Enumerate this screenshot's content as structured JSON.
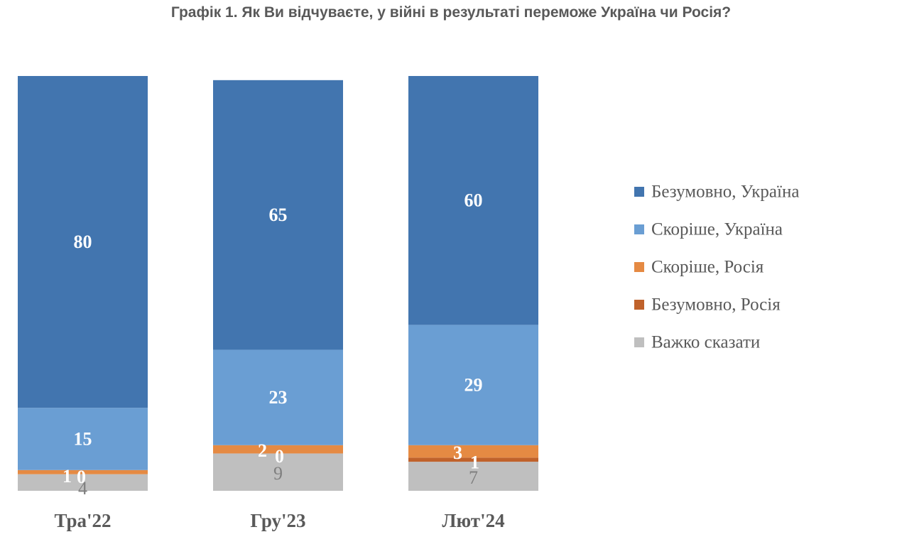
{
  "chart_data": {
    "type": "bar",
    "stacked": true,
    "title": "Графік 1. Як Ви відчуваєте, у війні в результаті переможе Україна чи Росія?",
    "categories": [
      "Тра'22",
      "Гру'23",
      "Лют'24"
    ],
    "series": [
      {
        "name": "Важко сказати",
        "values": [
          4,
          9,
          7
        ],
        "color": "#bfbfbf",
        "label_style": "grey"
      },
      {
        "name": "Безумовно, Росія",
        "values": [
          0,
          0,
          1
        ],
        "color": "#c0622b",
        "label_style": "white"
      },
      {
        "name": "Скоріше, Росія",
        "values": [
          1,
          2,
          3
        ],
        "color": "#e58a43",
        "label_style": "white"
      },
      {
        "name": "Скоріше, Україна",
        "values": [
          15,
          23,
          29
        ],
        "color": "#6a9ed3",
        "label_style": "white"
      },
      {
        "name": "Безумовно, Україна",
        "values": [
          80,
          65,
          60
        ],
        "color": "#4275af",
        "label_style": "white"
      }
    ],
    "legend_order": [
      "Безумовно, Україна",
      "Скоріше, Україна",
      "Скоріше, Росія",
      "Безумовно, Росія",
      "Важко сказати"
    ],
    "legend_position": "right",
    "ylim": [
      0,
      100
    ],
    "grid": false,
    "xlabel": "",
    "ylabel": ""
  }
}
